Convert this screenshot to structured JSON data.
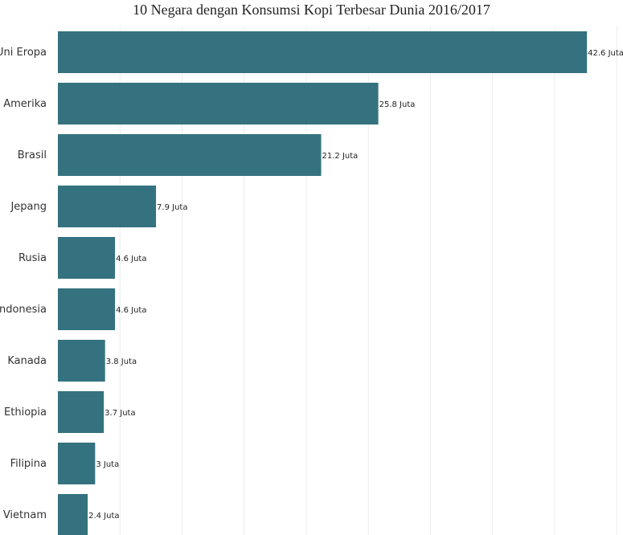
{
  "chart_data": {
    "type": "bar",
    "orientation": "horizontal",
    "title": "10 Negara dengan Konsumsi Kopi Terbesar Dunia 2016/2017",
    "xlabel": "",
    "ylabel": "",
    "categories": [
      "Uni Eropa",
      "Amerika",
      "Brasil",
      "Jepang",
      "Rusia",
      "Indonesia",
      "Kanada",
      "Ethiopia",
      "Filipina",
      "Vietnam"
    ],
    "values": [
      42.6,
      25.8,
      21.2,
      7.9,
      4.6,
      4.6,
      3.8,
      3.7,
      3,
      2.4
    ],
    "value_labels": [
      "42.6 Juta",
      "25.8 Juta",
      "21.2 Juta",
      "7.9 Juta",
      "4.6 Juta",
      "4.6 Juta",
      "3.8 Juta",
      "3.7 Juta",
      "3 Juta",
      "2.4 Juta"
    ],
    "xlim": [
      0,
      45
    ],
    "grid": true,
    "legend": "none",
    "bar_color": "#35727f",
    "grid_color": "#ececec"
  }
}
